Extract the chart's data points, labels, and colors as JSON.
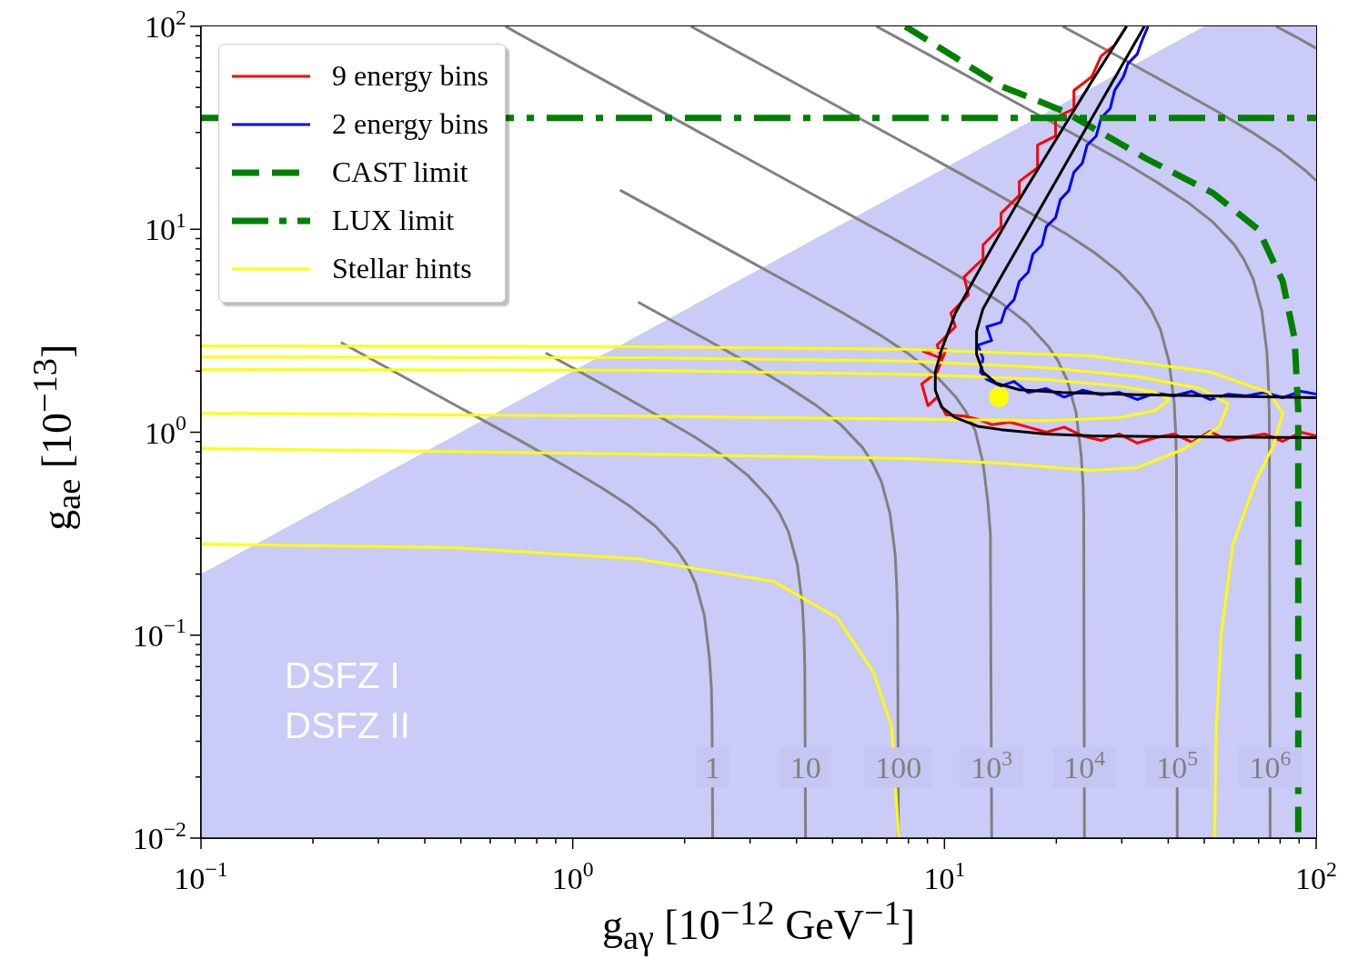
{
  "chart_data": {
    "type": "line",
    "xlabel": "g$_{aγ}$ [10$^{−12}$ GeV$^{−1}$]",
    "ylabel": "g$_{ae}$ [10$^{−13}$]",
    "log": "xy",
    "legend": "top left",
    "marker": "none",
    "xlim": [
      0.1,
      100
    ],
    "ylim": [
      0.01,
      100
    ],
    "xticks": [
      {
        "value": 0.1,
        "label": "10$^{−1}$"
      },
      {
        "value": 0.2,
        "label": null
      },
      {
        "value": 0.3,
        "label": null
      },
      {
        "value": 0.4,
        "label": null
      },
      {
        "value": 0.5,
        "label": null
      },
      {
        "value": 0.6,
        "label": null
      },
      {
        "value": 0.7,
        "label": null
      },
      {
        "value": 0.8,
        "label": null
      },
      {
        "value": 0.9,
        "label": null
      },
      {
        "value": 1,
        "label": "10$^{0}$"
      },
      {
        "value": 2,
        "label": null
      },
      {
        "value": 3,
        "label": null
      },
      {
        "value": 4,
        "label": null
      },
      {
        "value": 5,
        "label": null
      },
      {
        "value": 6,
        "label": null
      },
      {
        "value": 7,
        "label": null
      },
      {
        "value": 8,
        "label": null
      },
      {
        "value": 9,
        "label": null
      },
      {
        "value": 10,
        "label": "10$^{1}$"
      },
      {
        "value": 20,
        "label": null
      },
      {
        "value": 30,
        "label": null
      },
      {
        "value": 40,
        "label": null
      },
      {
        "value": 50,
        "label": null
      },
      {
        "value": 60,
        "label": null
      },
      {
        "value": 70,
        "label": null
      },
      {
        "value": 80,
        "label": null
      },
      {
        "value": 90,
        "label": null
      },
      {
        "value": 100,
        "label": "10$^{2}$"
      }
    ],
    "yticks": [
      {
        "value": 0.01,
        "label": "10$^{−2}$"
      },
      {
        "value": 0.02,
        "label": null
      },
      {
        "value": 0.03,
        "label": null
      },
      {
        "value": 0.04,
        "label": null
      },
      {
        "value": 0.05,
        "label": null
      },
      {
        "value": 0.06,
        "label": null
      },
      {
        "value": 0.07,
        "label": null
      },
      {
        "value": 0.08,
        "label": null
      },
      {
        "value": 0.09,
        "label": null
      },
      {
        "value": 0.1,
        "label": "10$^{−1}$"
      },
      {
        "value": 0.2,
        "label": null
      },
      {
        "value": 0.3,
        "label": null
      },
      {
        "value": 0.4,
        "label": null
      },
      {
        "value": 0.5,
        "label": null
      },
      {
        "value": 0.6,
        "label": null
      },
      {
        "value": 0.7,
        "label": null
      },
      {
        "value": 0.8,
        "label": null
      },
      {
        "value": 0.9,
        "label": null
      },
      {
        "value": 1,
        "label": "10$^{0}$"
      },
      {
        "value": 2,
        "label": null
      },
      {
        "value": 3,
        "label": null
      },
      {
        "value": 4,
        "label": null
      },
      {
        "value": 5,
        "label": null
      },
      {
        "value": 6,
        "label": null
      },
      {
        "value": 7,
        "label": null
      },
      {
        "value": 8,
        "label": null
      },
      {
        "value": 9,
        "label": null
      },
      {
        "value": 10,
        "label": "10$^{1}$"
      },
      {
        "value": 20,
        "label": null
      },
      {
        "value": 30,
        "label": null
      },
      {
        "value": 40,
        "label": null
      },
      {
        "value": 50,
        "label": null
      },
      {
        "value": 60,
        "label": null
      },
      {
        "value": 70,
        "label": null
      },
      {
        "value": 80,
        "label": null
      },
      {
        "value": 90,
        "label": null
      },
      {
        "value": 100,
        "label": "10$^{2}$"
      }
    ],
    "annotations": [
      "DSFZ I",
      "DSFZ II",
      {
        "text": "1",
        "x": 2.38,
        "y": 0.0223
      },
      {
        "text": "10",
        "x": 4.23,
        "y": 0.0223
      },
      {
        "text": "100",
        "x": 7.52,
        "y": 0.0223
      },
      {
        "text": "10$^{3}$",
        "x": 13.4,
        "y": 0.0223
      },
      {
        "text": "10$^{4}$",
        "x": 23.8,
        "y": 0.0223
      },
      {
        "text": "10$^{5}$",
        "x": 42.3,
        "y": 0.0223
      },
      {
        "text": "10$^{6}$",
        "x": 75.2,
        "y": 0.0223
      }
    ],
    "series": [
      {
        "type": "area",
        "color": "#cbcbf8",
        "x": [
          0.1,
          50,
          100
        ],
        "values": [
          0.2,
          100,
          100
        ]
      },
      {
        "color": "#808080",
        "x": [
          0.238,
          0.476,
          0.714,
          0.952,
          1.19,
          1.43,
          1.67,
          1.9,
          2.02,
          2.14,
          2.26,
          2.33,
          2.36,
          2.37,
          2.38
        ],
        "values": [
          2.77,
          1.38,
          0.919,
          0.683,
          0.536,
          0.43,
          0.344,
          0.266,
          0.225,
          0.18,
          0.125,
          0.0787,
          0.0555,
          0.0392,
          0.01
        ]
      },
      {
        "color": "#808080",
        "x": [
          0.846,
          1.27,
          1.69,
          2.12,
          2.54,
          2.96,
          3.38,
          3.6,
          3.81,
          4.02,
          4.15,
          4.19,
          4.21,
          4.23
        ],
        "values": [
          2.46,
          1.63,
          1.21,
          0.952,
          0.765,
          0.612,
          0.472,
          0.4,
          0.321,
          0.223,
          0.14,
          0.0986,
          0.0697,
          0.01
        ]
      },
      {
        "color": "#808080",
        "x": [
          1.5,
          2.26,
          3.01,
          3.76,
          4.51,
          5.26,
          6.02,
          6.39,
          6.77,
          7.14,
          7.37,
          7.44,
          7.48,
          7.52
        ],
        "values": [
          4.37,
          2.9,
          2.16,
          1.69,
          1.36,
          1.09,
          0.84,
          0.711,
          0.57,
          0.396,
          0.249,
          0.175,
          0.124,
          0.01
        ]
      },
      {
        "color": "#808080",
        "x": [
          1.34,
          2.68,
          4.02,
          5.36,
          6.7,
          8.04,
          9.38,
          10.7,
          11.4,
          12.1,
          12.7,
          13.1,
          13.3,
          13.3,
          13.4
        ],
        "values": [
          15.6,
          7.78,
          5.17,
          3.85,
          3.02,
          2.42,
          1.94,
          1.5,
          1.27,
          1.02,
          0.706,
          0.443,
          0.312,
          0.221,
          0.01
        ]
      },
      {
        "color": "#808080",
        "x": [
          0.659,
          0.714,
          1.19,
          2.38,
          4.76,
          7.14,
          9.52,
          11.9,
          14.3,
          16.7,
          19.0,
          20.2,
          21.4,
          22.6,
          23.3,
          23.6,
          23.7,
          23.8
        ],
        "values": [
          100,
          92.1,
          55.3,
          27.7,
          13.8,
          9.19,
          6.83,
          5.36,
          4.3,
          3.44,
          2.66,
          2.25,
          1.8,
          1.25,
          0.787,
          0.555,
          0.392,
          0.01
        ]
      },
      {
        "color": "#808080",
        "x": [
          2.08,
          4.23,
          8.46,
          12.7,
          16.9,
          21.2,
          25.4,
          29.6,
          33.8,
          36.0,
          38.1,
          40.2,
          41.5,
          41.9,
          42.1,
          42.3
        ],
        "values": [
          100,
          49.2,
          24.6,
          16.3,
          12.1,
          9.52,
          7.65,
          6.12,
          4.72,
          4.0,
          3.21,
          2.23,
          1.4,
          0.986,
          0.697,
          0.01
        ]
      },
      {
        "color": "#808080",
        "x": [
          6.56,
          7.52,
          15.0,
          22.6,
          30.1,
          37.6,
          45.1,
          52.6,
          60.2,
          63.9,
          67.7,
          71.4,
          73.7,
          74.4,
          74.8,
          75.2
        ],
        "values": [
          100,
          87.4,
          43.7,
          29.0,
          21.6,
          16.9,
          13.6,
          10.9,
          8.4,
          7.11,
          5.7,
          3.96,
          2.49,
          1.75,
          1.24,
          0.01
        ]
      },
      {
        "color": "#808080",
        "x": [
          20.8,
          26.8,
          40.2,
          53.6,
          67.0,
          80.4,
          93.8,
          100
        ],
        "values": [
          100,
          77.9,
          51.7,
          38.5,
          30.2,
          24.2,
          19.4,
          17.4
        ]
      },
      {
        "color": "#808080",
        "x": [
          78,
          88,
          100
        ],
        "values": [
          100,
          89,
          78
        ]
      },
      {
        "name": "9 energy bins",
        "color": "#ff0000",
        "x": [
          30.9,
          28.7,
          26.4,
          24.9,
          22.3,
          22.3,
          19.9,
          19.9,
          17.8,
          17.8,
          15.9,
          15.9,
          14.2,
          14.2,
          12.7,
          12.7,
          11.3,
          11.6,
          10.4,
          10.7,
          9.56,
          9.83,
          8.78,
          10.1,
          9.56,
          8.69,
          9.03,
          9.56,
          10.1,
          11.3,
          12.3,
          13.4,
          15.0,
          16.8,
          18.8,
          21.0,
          23.5,
          26.4,
          29.5,
          33.0,
          37.0,
          41.4,
          46.3,
          51.8,
          58.0,
          64.9,
          72.7,
          81.3,
          91.0,
          100
        ],
        "values": [
          100,
          80.9,
          71.4,
          56.4,
          48.3,
          39.3,
          35.4,
          28.8,
          26.0,
          20.1,
          17.2,
          14.7,
          12.0,
          10.3,
          8.37,
          7.17,
          5.83,
          4.75,
          3.86,
          3.31,
          2.69,
          2.31,
          2.5,
          2.56,
          1.98,
          1.73,
          1.35,
          1.49,
          1.22,
          1.2,
          1.16,
          1.09,
          1.12,
          1.06,
          1.0,
          1.06,
          0.96,
          0.911,
          0.98,
          0.884,
          0.94,
          0.98,
          0.893,
          1.01,
          0.911,
          0.95,
          0.98,
          0.902,
          1.0,
          0.96
        ]
      },
      {
        "name": "2 energy bins",
        "color": "#0000ff",
        "x": [
          35.3,
          34.0,
          33.0,
          31.2,
          30.3,
          28.7,
          27.9,
          26.4,
          25.6,
          24.2,
          23.5,
          22.3,
          21.6,
          20.5,
          19.9,
          18.8,
          18.3,
          17.3,
          16.8,
          15.9,
          15.4,
          14.6,
          14.2,
          13.0,
          13.4,
          12.3,
          12.7,
          12.5,
          13.0,
          14.2,
          15.4,
          16.8,
          18.8,
          21.0,
          23.5,
          26.4,
          29.5,
          33.0,
          37.0,
          41.4,
          46.3,
          51.8,
          58.0,
          64.9,
          72.7,
          81.3,
          91.0,
          100
        ],
        "values": [
          100,
          85.1,
          72.9,
          65.8,
          56.4,
          48.3,
          39.3,
          35.4,
          28.8,
          26.0,
          21.2,
          19.1,
          15.5,
          14.0,
          11.4,
          10.3,
          8.37,
          7.55,
          6.14,
          5.54,
          4.51,
          4.06,
          3.48,
          3.31,
          2.83,
          2.69,
          2.31,
          1.98,
          1.82,
          1.69,
          1.78,
          1.57,
          1.64,
          1.49,
          1.61,
          1.53,
          1.57,
          1.45,
          1.56,
          1.51,
          1.59,
          1.45,
          1.54,
          1.51,
          1.57,
          1.48,
          1.59,
          1.54
        ]
      },
      {
        "name": "CAST limit",
        "color": "#008000",
        "line_style": "dashed",
        "x": [
          7.85,
          14.2,
          21.0,
          34.9,
          52.7,
          69.9,
          81.3,
          87.5,
          89.5,
          89.5
        ],
        "values": [
          100,
          50.8,
          38.1,
          22.3,
          15.1,
          9.97,
          5.54,
          2.89,
          1.27,
          0.01
        ]
      },
      {
        "name": "LUX limit",
        "color": "#008000",
        "line_style": "dashdot",
        "x": [
          0.1,
          100
        ],
        "values": [
          35.4,
          35.4
        ]
      },
      {
        "name": "Stellar hints",
        "color": "#ffff00",
        "x": [
          0.1,
          1.49,
          8.07,
          24.9,
          51.8,
          74.7,
          81.3,
          76.9,
          68.7,
          59.7,
          55.5,
          53.9,
          53.3
        ],
        "values": [
          2.66,
          2.64,
          2.56,
          2.38,
          1.98,
          1.57,
          1.24,
          0.866,
          0.573,
          0.278,
          0.0993,
          0.0354,
          0.01
        ]
      },
      {
        "color": "#ffff00",
        "x": [
          0.1,
          0.483,
          1.49,
          3.47,
          5.14,
          6.44,
          7.21,
          7.54
        ],
        "values": [
          0.281,
          0.27,
          0.238,
          0.184,
          0.122,
          0.0657,
          0.0354,
          0.01
        ]
      },
      {
        "color": "#ffff00",
        "x": [
          0.1,
          1.49,
          8.07,
          18.8,
          33.0,
          49.0,
          58.0,
          54.8,
          43.8,
          33.0,
          24.9,
          14.2,
          8.07,
          1.49,
          0.1
        ],
        "values": [
          2.35,
          2.33,
          2.24,
          2.08,
          1.88,
          1.64,
          1.38,
          1.06,
          0.822,
          0.669,
          0.648,
          0.704,
          0.742,
          0.781,
          0.831
        ]
      },
      {
        "color": "#ffff00",
        "x": [
          0.1,
          1.49,
          8.07,
          18.8,
          29.5,
          37.0,
          40.2,
          37.0,
          29.5,
          18.8,
          8.07,
          1.49,
          0.1
        ],
        "values": [
          2.04,
          2.02,
          1.93,
          1.82,
          1.69,
          1.57,
          1.45,
          1.28,
          1.18,
          1.14,
          1.16,
          1.2,
          1.24
        ]
      },
      {
        "color": "#000000",
        "x": [
          30.9,
          24.9,
          19.9,
          15.9,
          12.7,
          10.7,
          9.83,
          9.45,
          9.45,
          9.83,
          10.7,
          12.3,
          14.2,
          18.8,
          24.9,
          43.8,
          100
        ],
        "values": [
          100,
          53.5,
          27.4,
          14.0,
          6.81,
          3.86,
          2.56,
          1.98,
          1.61,
          1.33,
          1.18,
          1.07,
          1.03,
          0.98,
          0.96,
          0.95,
          0.94
        ]
      },
      {
        "color": "#000000",
        "x": [
          34.5,
          27.9,
          22.3,
          17.8,
          14.2,
          12.7,
          12.2,
          12.2,
          12.7,
          13.8,
          15.9,
          20.7,
          33.0,
          100
        ],
        "values": [
          100,
          50.8,
          24.7,
          12.0,
          5.83,
          4.06,
          3.14,
          2.43,
          1.98,
          1.74,
          1.62,
          1.57,
          1.53,
          1.48
        ]
      },
      {
        "type": "scatter",
        "color": "#ffff00",
        "marker": "circle",
        "x": [
          14.0
        ],
        "values": [
          1.49
        ]
      }
    ]
  }
}
